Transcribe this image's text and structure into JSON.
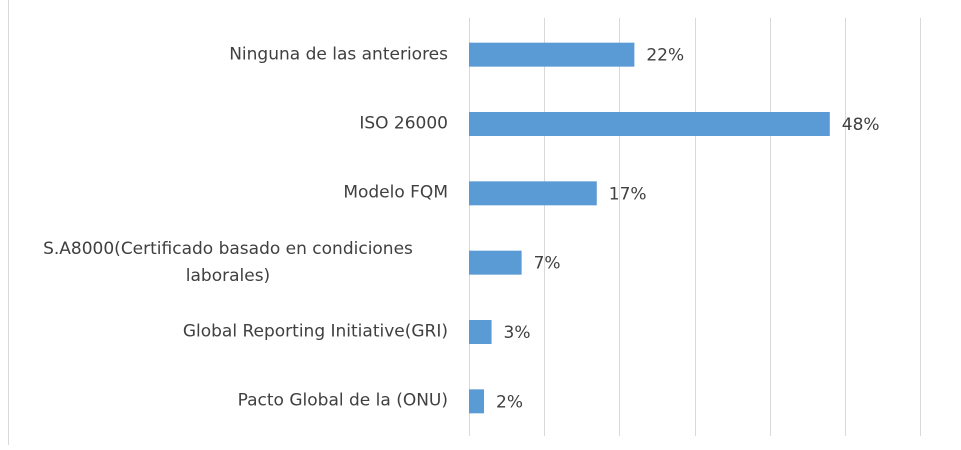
{
  "chart_data": {
    "type": "bar",
    "orientation": "horizontal",
    "categories": [
      "Ninguna de las anteriores",
      "ISO 26000",
      "Modelo FQM",
      "S.A8000(Certificado basado en condiciones laborales)",
      "Global Reporting Initiative(GRI)",
      "Pacto Global de la (ONU)"
    ],
    "values": [
      22,
      48,
      17,
      7,
      3,
      2
    ],
    "value_labels": [
      "22%",
      "48%",
      "17%",
      "7%",
      "3%",
      "2%"
    ],
    "color": "#5b9bd5",
    "xlim": [
      0,
      60
    ],
    "xticks": [
      0,
      10,
      20,
      30,
      40,
      50,
      60
    ],
    "grid": true
  }
}
